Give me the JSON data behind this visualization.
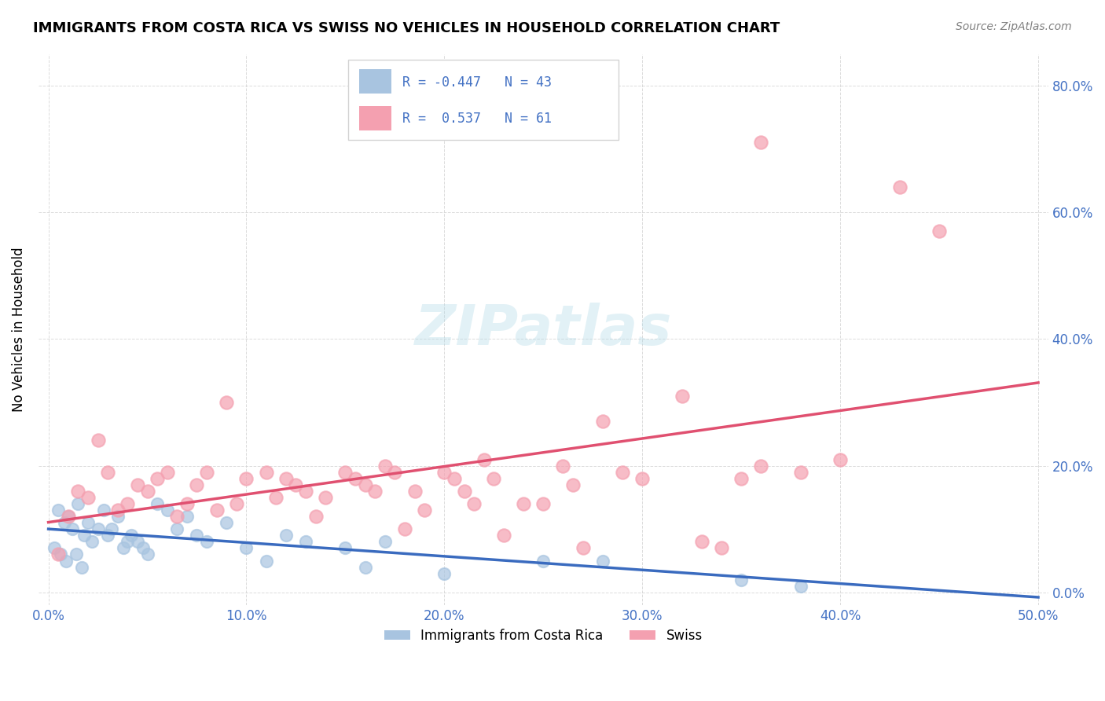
{
  "title": "IMMIGRANTS FROM COSTA RICA VS SWISS NO VEHICLES IN HOUSEHOLD CORRELATION CHART",
  "source": "Source: ZipAtlas.com",
  "ylabel_label": "No Vehicles in Household",
  "xlim": [
    0.0,
    0.5
  ],
  "ylim": [
    -0.02,
    0.85
  ],
  "blue_R": -0.447,
  "blue_N": 43,
  "pink_R": 0.537,
  "pink_N": 61,
  "blue_color": "#a8c4e0",
  "pink_color": "#f4a0b0",
  "blue_line_color": "#3a6bbf",
  "pink_line_color": "#e05070",
  "watermark": "ZIPatlas",
  "legend_label_blue": "Immigrants from Costa Rica",
  "legend_label_pink": "Swiss",
  "blue_scatter": [
    [
      0.005,
      0.13
    ],
    [
      0.008,
      0.11
    ],
    [
      0.01,
      0.12
    ],
    [
      0.012,
      0.1
    ],
    [
      0.015,
      0.14
    ],
    [
      0.018,
      0.09
    ],
    [
      0.02,
      0.11
    ],
    [
      0.022,
      0.08
    ],
    [
      0.025,
      0.1
    ],
    [
      0.028,
      0.13
    ],
    [
      0.03,
      0.09
    ],
    [
      0.032,
      0.1
    ],
    [
      0.035,
      0.12
    ],
    [
      0.038,
      0.07
    ],
    [
      0.04,
      0.08
    ],
    [
      0.042,
      0.09
    ],
    [
      0.045,
      0.08
    ],
    [
      0.048,
      0.07
    ],
    [
      0.05,
      0.06
    ],
    [
      0.055,
      0.14
    ],
    [
      0.06,
      0.13
    ],
    [
      0.065,
      0.1
    ],
    [
      0.07,
      0.12
    ],
    [
      0.075,
      0.09
    ],
    [
      0.08,
      0.08
    ],
    [
      0.09,
      0.11
    ],
    [
      0.1,
      0.07
    ],
    [
      0.11,
      0.05
    ],
    [
      0.12,
      0.09
    ],
    [
      0.13,
      0.08
    ],
    [
      0.15,
      0.07
    ],
    [
      0.16,
      0.04
    ],
    [
      0.17,
      0.08
    ],
    [
      0.2,
      0.03
    ],
    [
      0.25,
      0.05
    ],
    [
      0.28,
      0.05
    ],
    [
      0.003,
      0.07
    ],
    [
      0.006,
      0.06
    ],
    [
      0.009,
      0.05
    ],
    [
      0.014,
      0.06
    ],
    [
      0.017,
      0.04
    ],
    [
      0.35,
      0.02
    ],
    [
      0.38,
      0.01
    ]
  ],
  "pink_scatter": [
    [
      0.01,
      0.12
    ],
    [
      0.015,
      0.16
    ],
    [
      0.02,
      0.15
    ],
    [
      0.025,
      0.24
    ],
    [
      0.03,
      0.19
    ],
    [
      0.035,
      0.13
    ],
    [
      0.04,
      0.14
    ],
    [
      0.045,
      0.17
    ],
    [
      0.05,
      0.16
    ],
    [
      0.055,
      0.18
    ],
    [
      0.06,
      0.19
    ],
    [
      0.065,
      0.12
    ],
    [
      0.07,
      0.14
    ],
    [
      0.075,
      0.17
    ],
    [
      0.08,
      0.19
    ],
    [
      0.085,
      0.13
    ],
    [
      0.09,
      0.3
    ],
    [
      0.095,
      0.14
    ],
    [
      0.1,
      0.18
    ],
    [
      0.11,
      0.19
    ],
    [
      0.115,
      0.15
    ],
    [
      0.12,
      0.18
    ],
    [
      0.125,
      0.17
    ],
    [
      0.13,
      0.16
    ],
    [
      0.135,
      0.12
    ],
    [
      0.14,
      0.15
    ],
    [
      0.15,
      0.19
    ],
    [
      0.155,
      0.18
    ],
    [
      0.16,
      0.17
    ],
    [
      0.165,
      0.16
    ],
    [
      0.17,
      0.2
    ],
    [
      0.175,
      0.19
    ],
    [
      0.18,
      0.1
    ],
    [
      0.185,
      0.16
    ],
    [
      0.19,
      0.13
    ],
    [
      0.2,
      0.19
    ],
    [
      0.205,
      0.18
    ],
    [
      0.21,
      0.16
    ],
    [
      0.215,
      0.14
    ],
    [
      0.22,
      0.21
    ],
    [
      0.225,
      0.18
    ],
    [
      0.23,
      0.09
    ],
    [
      0.24,
      0.14
    ],
    [
      0.25,
      0.14
    ],
    [
      0.26,
      0.2
    ],
    [
      0.265,
      0.17
    ],
    [
      0.27,
      0.07
    ],
    [
      0.28,
      0.27
    ],
    [
      0.29,
      0.19
    ],
    [
      0.3,
      0.18
    ],
    [
      0.32,
      0.31
    ],
    [
      0.33,
      0.08
    ],
    [
      0.34,
      0.07
    ],
    [
      0.35,
      0.18
    ],
    [
      0.36,
      0.2
    ],
    [
      0.38,
      0.19
    ],
    [
      0.4,
      0.21
    ],
    [
      0.43,
      0.64
    ],
    [
      0.45,
      0.57
    ],
    [
      0.36,
      0.71
    ],
    [
      0.005,
      0.06
    ]
  ]
}
